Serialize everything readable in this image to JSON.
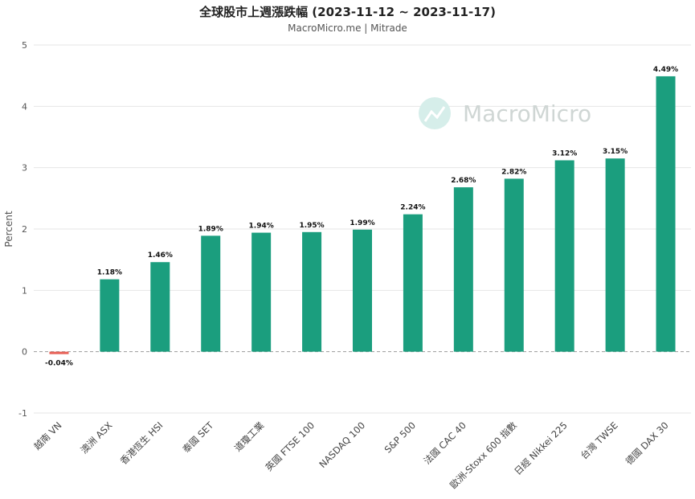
{
  "chart_data": {
    "type": "bar",
    "title": "全球股市上週漲跌幅 (2023-11-12 ~ 2023-11-17)",
    "subtitle": "MacroMicro.me | Mitrade",
    "ylabel": "Percent",
    "xlabel": "",
    "ylim": [
      -1,
      5
    ],
    "yticks": [
      -1,
      0,
      1,
      2,
      3,
      4,
      5
    ],
    "grid": true,
    "legend": "none",
    "categories": [
      "越南 VN",
      "澳洲 ASX",
      "香港恆生 HSI",
      "泰國 SET",
      "道瓊工業",
      "英國 FTSE 100",
      "NASDAQ 100",
      "S&P 500",
      "法國 CAC 40",
      "歐洲-Stoxx 600 指數",
      "日經 Nikkei 225",
      "台灣 TWSE",
      "德國 DAX 30"
    ],
    "values": [
      -0.04,
      1.18,
      1.46,
      1.89,
      1.94,
      1.95,
      1.99,
      2.24,
      2.68,
      2.82,
      3.12,
      3.15,
      4.49
    ],
    "data_labels": [
      "-0.04%",
      "1.18%",
      "1.46%",
      "1.89%",
      "1.94%",
      "1.95%",
      "1.99%",
      "2.24%",
      "2.68%",
      "2.82%",
      "3.12%",
      "3.15%",
      "4.49%"
    ],
    "colors": {
      "positive": "#1b9e7e",
      "negative": "#e8645a",
      "grid": "#e6e6e6",
      "zero_line": "#999999"
    }
  },
  "watermark": {
    "text": "MacroMicro",
    "icon": "macromicro-logo-icon"
  }
}
